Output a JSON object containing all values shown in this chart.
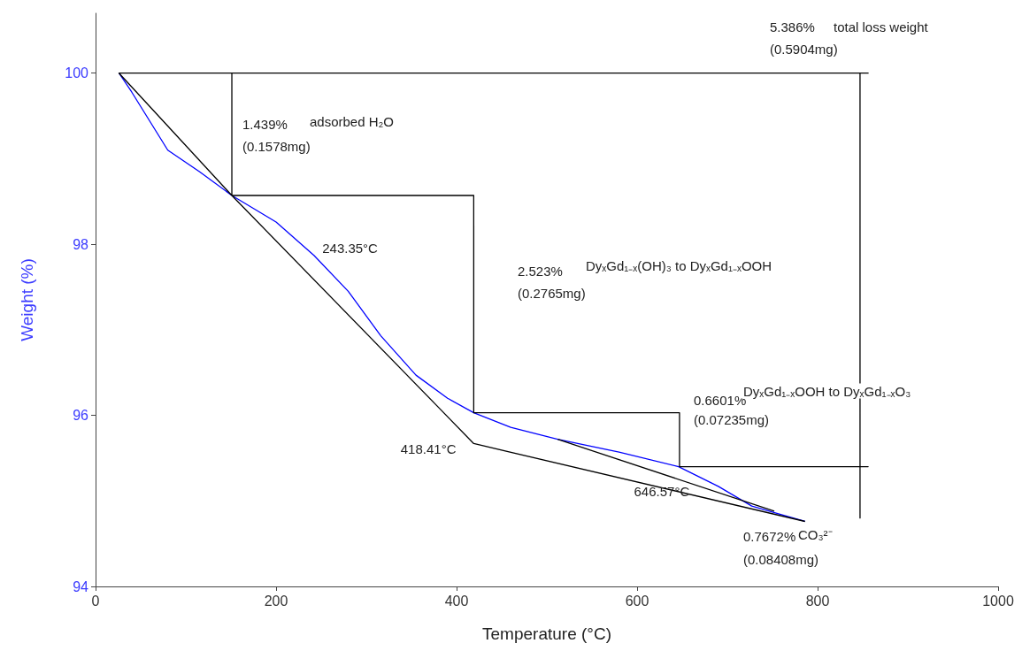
{
  "chart_data": {
    "type": "line",
    "xlabel": "Temperature (°C)",
    "ylabel": "Weight (%)",
    "xlim": [
      0,
      1000
    ],
    "xticks": [
      0,
      200,
      400,
      600,
      800,
      {
        "value": 1000,
        "label": "1000"
      }
    ],
    "ylim": [
      94,
      100.7
    ],
    "yticks": [
      94,
      96,
      98,
      100
    ],
    "marker": "none",
    "series": [
      {
        "color": "#0000ff",
        "x": [
          26,
          40,
          80,
          115,
          151,
          200,
          242,
          280,
          316,
          355,
          390,
          419,
          460,
          512,
          580,
          646,
          690,
          727,
          760,
          786
        ],
        "values": [
          100,
          99.78,
          99.1,
          98.85,
          98.57,
          98.26,
          97.87,
          97.45,
          96.93,
          96.47,
          96.2,
          96.03,
          95.86,
          95.72,
          95.57,
          95.4,
          95.17,
          94.94,
          94.84,
          94.76
        ]
      },
      {
        "color": "#000000",
        "x": [
          786,
          419,
          151,
          26,
          856,
          847,
          847,
          847,
          856,
          647,
          647,
          419,
          419,
          151,
          151
        ],
        "values": [
          94.76,
          95.67,
          98.57,
          100,
          100,
          100,
          94.8,
          95.4,
          95.4,
          95.4,
          96.03,
          96.03,
          98.57,
          98.57,
          100
        ]
      },
      {
        "color": "#000000",
        "x": [
          512,
          752
        ],
        "values": [
          95.72,
          94.88
        ]
      }
    ],
    "annotations": [
      "5.386%",
      "total loss weight",
      "(0.5904mg)",
      "1.439%",
      "adsorbed H₂O",
      "(0.1578mg)",
      {
        "text": "243.35°C",
        "x": 243.35,
        "y": 97.87
      },
      "2.523%",
      "DyₓGd₁₋ₓ(OH)₃ to DyₓGd₁₋ₓOOH",
      "(0.2765mg)",
      "0.6601%",
      "DyₓGd₁₋ₓOOH to DyₓGd₁₋ₓO₃",
      "(0.07235mg)",
      {
        "text": "418.41°C",
        "x": 418.41,
        "y": 95.67
      },
      {
        "text": "646.57°C",
        "x": 646.57,
        "y": 95.4
      },
      "0.7672%",
      "CO₃²⁻",
      "(0.08408mg)"
    ]
  }
}
